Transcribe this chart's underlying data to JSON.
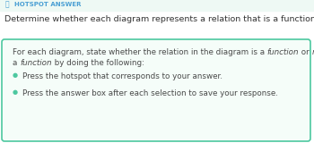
{
  "header_icon": "⌖",
  "header_text": "HOTSPOT ANSWER",
  "header_color": "#4a9fd4",
  "title_text": "Determine whether each diagram represents a relation that is a function.",
  "title_color": "#333333",
  "box_border_color": "#4dc8a0",
  "box_bg_color": "#f5fdf9",
  "body_color": "#4a4a4a",
  "bullet_char": "●",
  "bullet1": "Press the hotspot that corresponds to your answer.",
  "bullet2": "Press the answer box after each selection to save your response.",
  "bg_color": "#ffffff",
  "header_bg_color": "#eef9f4"
}
